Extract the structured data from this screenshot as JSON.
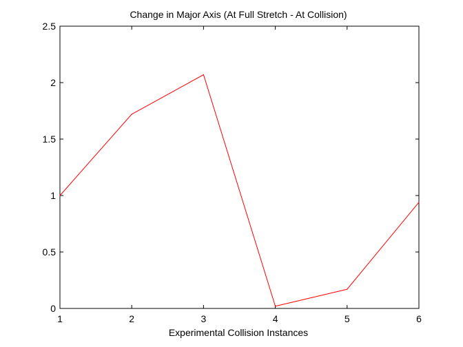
{
  "chart_data": {
    "type": "line",
    "title": "Change in Major Axis (At Full Stretch - At Collision)",
    "xlabel": "Experimental Collision Instances",
    "ylabel": "",
    "xlim": [
      1,
      6
    ],
    "ylim": [
      0,
      2.5
    ],
    "xticks": [
      1,
      2,
      3,
      4,
      5,
      6
    ],
    "yticks": [
      0,
      0.5,
      1,
      1.5,
      2,
      2.5
    ],
    "xtick_labels": [
      "1",
      "2",
      "3",
      "4",
      "5",
      "6"
    ],
    "ytick_labels": [
      "0",
      "0.5",
      "1",
      "1.5",
      "2",
      "2.5"
    ],
    "grid": false,
    "series": [
      {
        "color": "#ff0000",
        "x": [
          1,
          2,
          3,
          4,
          5,
          6
        ],
        "y": [
          1.0,
          1.72,
          2.07,
          0.02,
          0.17,
          0.94
        ]
      }
    ]
  }
}
